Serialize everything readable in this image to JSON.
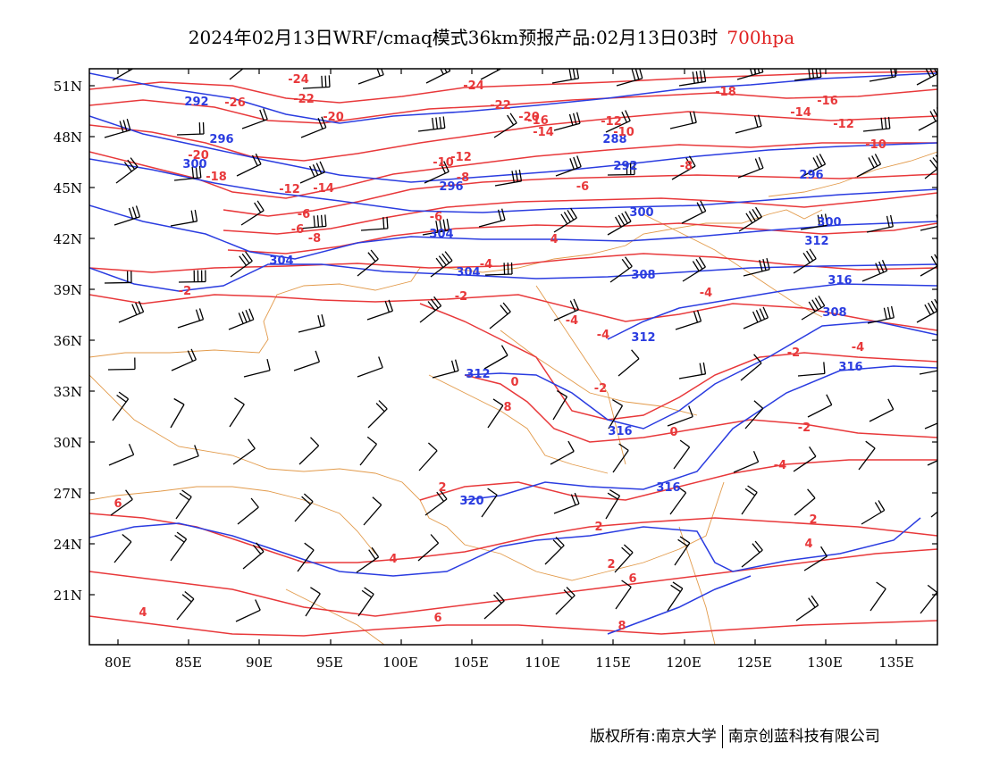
{
  "title": {
    "main": "2024年02月13日WRF/cmaq模式36km预报产品:02月13日03时",
    "level": "700hpa"
  },
  "colors": {
    "temperature": "#e8383a",
    "height": "#2a3ce0",
    "border": "#e29a4a",
    "wind": "#000000"
  },
  "axes": {
    "lat_labels": [
      "51N",
      "48N",
      "45N",
      "42N",
      "39N",
      "36N",
      "33N",
      "30N",
      "27N",
      "24N",
      "21N"
    ],
    "lon_labels": [
      "80E",
      "85E",
      "90E",
      "95E",
      "100E",
      "105E",
      "110E",
      "115E",
      "120E",
      "125E",
      "130E",
      "135E"
    ]
  },
  "height_labels": [
    "292",
    "296",
    "300",
    "288",
    "292",
    "296",
    "300",
    "304",
    "296",
    "300",
    "304",
    "304",
    "308",
    "312",
    "316",
    "308",
    "312",
    "312",
    "316",
    "316",
    "316",
    "320"
  ],
  "temp_labels": [
    "-24",
    "-26",
    "-22",
    "-20",
    "-20",
    "-18",
    "-24",
    "-22",
    "-20",
    "-16",
    "-12",
    "-10",
    "-12",
    "-14",
    "-18",
    "-16",
    "-14",
    "-12",
    "-10",
    "-8",
    "-6",
    "-8",
    "-10",
    "-12",
    "-14",
    "-6",
    "-4",
    "-2",
    "-4",
    "-8",
    "-6",
    "-6",
    "-4",
    "-4",
    "-2",
    "0",
    "-2",
    "-4",
    "-2",
    "0",
    "-2",
    "-4",
    "2",
    "2",
    "2",
    "4",
    "2",
    "4",
    "4",
    "6",
    "6",
    "8",
    "6",
    "8",
    "4"
  ],
  "footer": {
    "left": "版权所有:南京大学",
    "right": "南京创蓝科技有限公司"
  }
}
